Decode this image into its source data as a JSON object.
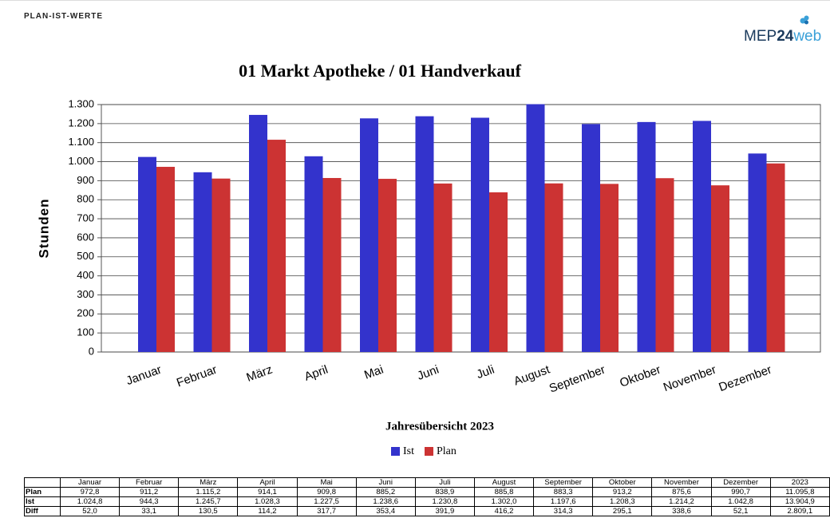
{
  "header": {
    "title": "PLAN-IST-WERTE",
    "logo": {
      "prefix": "MEP",
      "number": "24",
      "suffix": "web"
    }
  },
  "chart_data": {
    "type": "bar",
    "title": "01 Markt Apotheke / 01 Handverkauf",
    "ylabel": "Stunden",
    "xlabel": "Jahresübersicht 2023",
    "categories": [
      "Januar",
      "Februar",
      "März",
      "April",
      "Mai",
      "Juni",
      "Juli",
      "August",
      "September",
      "Oktober",
      "November",
      "Dezember"
    ],
    "series": [
      {
        "name": "Ist",
        "color": "#3333cc",
        "values": [
          1024.8,
          944.3,
          1245.7,
          1028.3,
          1227.5,
          1238.6,
          1230.8,
          1302.0,
          1197.6,
          1208.3,
          1214.2,
          1042.8
        ]
      },
      {
        "name": "Plan",
        "color": "#cc3333",
        "values": [
          972.8,
          911.2,
          1115.2,
          914.1,
          909.8,
          885.2,
          838.9,
          885.8,
          883.3,
          913.2,
          875.6,
          990.7
        ]
      }
    ],
    "ylim": [
      0,
      1300
    ],
    "yticks": [
      0,
      100,
      200,
      300,
      400,
      500,
      600,
      700,
      800,
      900,
      {
        "value": 1000,
        "label": "1.000"
      },
      {
        "value": 1100,
        "label": "1.100"
      },
      {
        "value": 1200,
        "label": "1.200"
      },
      {
        "value": 1300,
        "label": "1.300"
      }
    ],
    "grid": true,
    "legend": "bottom"
  },
  "table": {
    "header": [
      "Januar",
      "Februar",
      "März",
      "April",
      "Mai",
      "Juni",
      "Juli",
      "August",
      "September",
      "Oktober",
      "November",
      "Dezember",
      "2023"
    ],
    "rows": [
      [
        "Plan",
        "972,8",
        "911,2",
        "1.115,2",
        "914,1",
        "909,8",
        "885,2",
        "838,9",
        "885,8",
        "883,3",
        "913,2",
        "875,6",
        "990,7",
        "11.095,8"
      ],
      [
        "Ist",
        "1.024,8",
        "944,3",
        "1.245,7",
        "1.028,3",
        "1.227,5",
        "1.238,6",
        "1.230,8",
        "1.302,0",
        "1.197,6",
        "1.208,3",
        "1.214,2",
        "1.042,8",
        "13.904,9"
      ],
      [
        "Diff",
        "52,0",
        "33,1",
        "130,5",
        "114,2",
        "317,7",
        "353,4",
        "391,9",
        "416,2",
        "314,3",
        "295,1",
        "338,6",
        "52,1",
        "2.809,1"
      ]
    ]
  }
}
